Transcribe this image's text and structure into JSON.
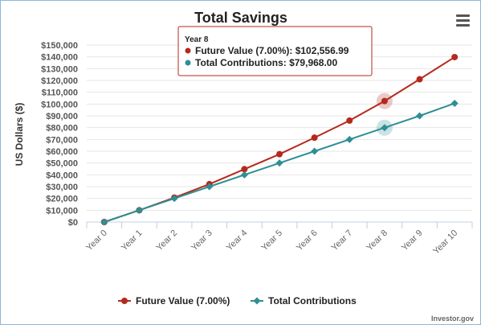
{
  "chart_data": {
    "type": "line",
    "title": "Total Savings",
    "ylabel": "US Dollars ($)",
    "xlabel": "",
    "categories": [
      "Year 0",
      "Year 1",
      "Year 2",
      "Year 3",
      "Year 4",
      "Year 5",
      "Year 6",
      "Year 7",
      "Year 8",
      "Year 9",
      "Year 10"
    ],
    "ylim": [
      0,
      150000
    ],
    "ytick_values": [
      0,
      10000,
      20000,
      30000,
      40000,
      50000,
      60000,
      70000,
      80000,
      90000,
      100000,
      110000,
      120000,
      130000,
      140000,
      150000
    ],
    "ytick_labels": [
      "$0",
      "$10,000",
      "$20,000",
      "$30,000",
      "$40,000",
      "$50,000",
      "$60,000",
      "$70,000",
      "$80,000",
      "$90,000",
      "$100,000",
      "$110,000",
      "$120,000",
      "$130,000",
      "$140,000",
      "$150,000"
    ],
    "grid": true,
    "legend_position": "bottom",
    "series": [
      {
        "name": "Future Value (7.00%)",
        "color": "#b5291c",
        "marker": "circle",
        "values": [
          0,
          10000,
          20700,
          32100,
          44800,
          57500,
          71500,
          86000,
          102556.99,
          121000,
          139800
        ]
      },
      {
        "name": "Total Contributions",
        "color": "#2e8f94",
        "marker": "diamond",
        "values": [
          0,
          10000,
          20000,
          30000,
          40000,
          50000,
          60000,
          70000,
          79968,
          90000,
          100600
        ]
      }
    ],
    "tooltip": {
      "header": "Year 8",
      "category_index": 8,
      "lines": [
        "Future Value (7.00%): $102,556.99",
        "Total Contributions: $79,968.00"
      ]
    },
    "credit": "Investor.gov"
  },
  "menu_icon": "hamburger-menu-icon"
}
